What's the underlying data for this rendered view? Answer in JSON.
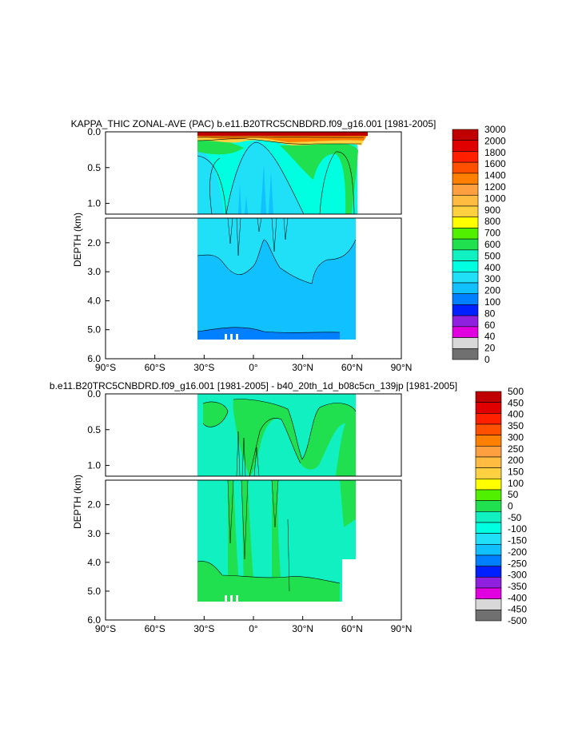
{
  "chart_data": [
    {
      "type": "heatmap",
      "title": "KAPPA_THIC ZONAL-AVE (PAC) b.e11.B20TRC5CNBDRD.f09_g16.001 [1981-2005]",
      "ylabel": "DEPTH (km)",
      "xlabel": "",
      "x_ticks": [
        "90°S",
        "60°S",
        "30°S",
        "0°",
        "30°N",
        "60°N",
        "90°N"
      ],
      "x_tick_values": [
        -90,
        -60,
        -30,
        0,
        30,
        60,
        90
      ],
      "y_ticks_upper": [
        "0.0",
        "0.5",
        "1.0"
      ],
      "y_tick_values_upper": [
        0.0,
        0.5,
        1.0
      ],
      "y_ticks_lower": [
        "2.0",
        "3.0",
        "4.0",
        "5.0",
        "6.0"
      ],
      "y_tick_values_lower": [
        2.0,
        3.0,
        4.0,
        5.0,
        6.0
      ],
      "xlim": [
        -90,
        90
      ],
      "ylim_upper": [
        0.0,
        1.15
      ],
      "ylim_lower": [
        1.15,
        6.0
      ],
      "data_extent": {
        "lat_min": -34,
        "lat_max": 65,
        "depth_max": 5.35
      },
      "legend": "right",
      "colorbar": {
        "labels": [
          "3000",
          "2000",
          "1800",
          "1600",
          "1400",
          "1200",
          "1000",
          "900",
          "800",
          "700",
          "600",
          "500",
          "400",
          "300",
          "200",
          "100",
          "80",
          "60",
          "40",
          "20",
          "0"
        ],
        "colors": [
          "#c00000",
          "#e00000",
          "#ff2000",
          "#ff5000",
          "#ff8000",
          "#ffa040",
          "#ffbc40",
          "#ffd040",
          "#ffff00",
          "#50f000",
          "#20e050",
          "#10f0c0",
          "#00ffe0",
          "#20e0f8",
          "#10c0ff",
          "#0080ff",
          "#0020ff",
          "#9020e0",
          "#e000e0",
          "#d8d8d8",
          "#707070"
        ]
      },
      "dominant_values": {
        "upper_ocean_surface_layer": 3000,
        "upper_ocean_interior": 350,
        "deep_ocean": 250,
        "near_bottom": 150
      }
    },
    {
      "type": "heatmap",
      "title": "b.e11.B20TRC5CNBDRD.f09_g16.001 [1981-2005] - b40_20th_1d_b08c5cn_139jp [1981-2005]",
      "ylabel": "DEPTH (km)",
      "xlabel": "",
      "x_ticks": [
        "90°S",
        "60°S",
        "30°S",
        "0°",
        "30°N",
        "60°N",
        "90°N"
      ],
      "x_tick_values": [
        -90,
        -60,
        -30,
        0,
        30,
        60,
        90
      ],
      "y_ticks_upper": [
        "0.0",
        "0.5",
        "1.0"
      ],
      "y_tick_values_upper": [
        0.0,
        0.5,
        1.0
      ],
      "y_ticks_lower": [
        "2.0",
        "3.0",
        "4.0",
        "5.0",
        "6.0"
      ],
      "y_tick_values_lower": [
        2.0,
        3.0,
        4.0,
        5.0,
        6.0
      ],
      "xlim": [
        -90,
        90
      ],
      "ylim_upper": [
        0.0,
        1.15
      ],
      "ylim_lower": [
        1.15,
        6.0
      ],
      "data_extent": {
        "lat_min": -34,
        "lat_max": 62,
        "depth_max": 5.35
      },
      "legend": "right",
      "colorbar": {
        "labels": [
          "500",
          "450",
          "400",
          "350",
          "300",
          "250",
          "200",
          "150",
          "100",
          "50",
          "0",
          "-50",
          "-100",
          "-150",
          "-200",
          "-250",
          "-300",
          "-350",
          "-400",
          "-450",
          "-500"
        ],
        "colors": [
          "#c00000",
          "#e00000",
          "#ff2000",
          "#ff5000",
          "#ff8000",
          "#ffa040",
          "#ffbc40",
          "#ffd040",
          "#ffff00",
          "#50f000",
          "#20e050",
          "#10f0c0",
          "#00ffe0",
          "#20e0f8",
          "#10c0ff",
          "#0080ff",
          "#0020ff",
          "#9020e0",
          "#e000e0",
          "#d8d8d8",
          "#707070"
        ]
      },
      "dominant_values": {
        "background": -25,
        "positive_patches": 25
      }
    }
  ]
}
